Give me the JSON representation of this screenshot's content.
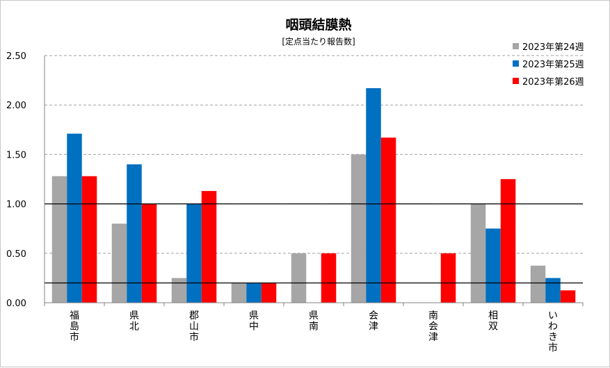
{
  "chart_data": {
    "type": "bar",
    "title": "咽頭結膜熱",
    "subtitle": "[定点当たり報告数]",
    "categories": [
      "福島市",
      "県北",
      "郡山市",
      "県中",
      "県南",
      "会津",
      "南会津",
      "相双",
      "いわき市"
    ],
    "series": [
      {
        "name": "2023年第24週",
        "color": "#a6a6a6",
        "values": [
          1.28,
          0.8,
          0.25,
          0.2,
          0.5,
          1.5,
          0.0,
          1.0,
          0.375
        ]
      },
      {
        "name": "2023年第25週",
        "color": "#0070c0",
        "values": [
          1.71,
          1.4,
          1.0,
          0.2,
          0.0,
          2.17,
          0.0,
          0.75,
          0.25
        ]
      },
      {
        "name": "2023年第26週",
        "color": "#ff0000",
        "values": [
          1.28,
          1.0,
          1.13,
          0.2,
          0.5,
          1.67,
          0.5,
          1.25,
          0.125
        ]
      }
    ],
    "ylim": [
      0,
      2.5
    ],
    "yticks": [
      "0.00",
      "0.50",
      "1.00",
      "1.50",
      "2.00",
      "2.50"
    ],
    "reference_lines": [
      0.2,
      1.0
    ],
    "grid": "dashed horizontal",
    "legend_position": "top-right"
  }
}
